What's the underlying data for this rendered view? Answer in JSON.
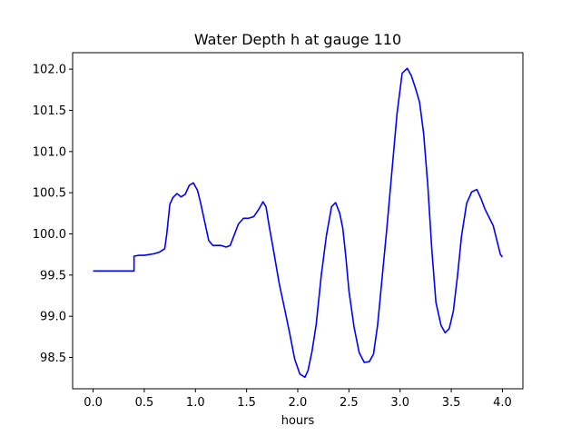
{
  "chart_data": {
    "type": "line",
    "title": "Water Depth h at gauge 110",
    "xlabel": "hours",
    "ylabel": "",
    "xlim": [
      -0.2,
      4.2
    ],
    "ylim": [
      98.12,
      102.2
    ],
    "xticks": [
      0.0,
      0.5,
      1.0,
      1.5,
      2.0,
      2.5,
      3.0,
      3.5,
      4.0
    ],
    "xtick_labels": [
      "0.0",
      "0.5",
      "1.0",
      "1.5",
      "2.0",
      "2.5",
      "3.0",
      "3.5",
      "4.0"
    ],
    "yticks": [
      98.5,
      99.0,
      99.5,
      100.0,
      100.5,
      101.0,
      101.5,
      102.0
    ],
    "ytick_labels": [
      "98.5",
      "99.0",
      "99.5",
      "100.0",
      "100.5",
      "101.0",
      "101.5",
      "102.0"
    ],
    "grid": false,
    "line_color": "#0000ff",
    "series": [
      {
        "x": [
          0.0,
          0.1,
          0.2,
          0.3,
          0.4,
          0.4,
          0.45,
          0.5,
          0.55,
          0.6,
          0.65,
          0.7,
          0.72,
          0.75,
          0.78,
          0.82,
          0.86,
          0.9,
          0.94,
          0.98,
          1.02,
          1.05,
          1.09,
          1.13,
          1.17,
          1.2,
          1.25,
          1.3,
          1.34,
          1.38,
          1.42,
          1.47,
          1.52,
          1.57,
          1.62,
          1.66,
          1.69,
          1.72,
          1.77,
          1.82,
          1.87,
          1.92,
          1.97,
          2.02,
          2.07,
          2.1,
          2.14,
          2.18,
          2.23,
          2.28,
          2.33,
          2.37,
          2.41,
          2.44,
          2.47,
          2.5,
          2.55,
          2.6,
          2.65,
          2.7,
          2.74,
          2.78,
          2.82,
          2.87,
          2.92,
          2.97,
          3.02,
          3.07,
          3.11,
          3.15,
          3.19,
          3.23,
          3.27,
          3.31,
          3.35,
          3.4,
          3.44,
          3.48,
          3.52,
          3.56,
          3.6,
          3.65,
          3.7,
          3.75,
          3.79,
          3.83,
          3.87,
          3.91,
          3.95,
          3.98,
          4.0
        ],
        "y": [
          99.55,
          99.55,
          99.55,
          99.55,
          99.55,
          99.73,
          99.74,
          99.74,
          99.75,
          99.76,
          99.78,
          99.82,
          100.0,
          100.36,
          100.44,
          100.49,
          100.45,
          100.48,
          100.59,
          100.62,
          100.53,
          100.38,
          100.15,
          99.92,
          99.86,
          99.86,
          99.86,
          99.84,
          99.86,
          99.99,
          100.12,
          100.19,
          100.19,
          100.21,
          100.3,
          100.39,
          100.33,
          100.1,
          99.75,
          99.39,
          99.1,
          98.8,
          98.48,
          98.3,
          98.26,
          98.34,
          98.58,
          98.9,
          99.5,
          99.98,
          100.33,
          100.38,
          100.25,
          100.07,
          99.72,
          99.31,
          98.87,
          98.56,
          98.44,
          98.45,
          98.54,
          98.89,
          99.41,
          100.06,
          100.76,
          101.46,
          101.95,
          102.01,
          101.92,
          101.77,
          101.6,
          101.22,
          100.6,
          99.81,
          99.17,
          98.89,
          98.8,
          98.85,
          99.06,
          99.48,
          99.97,
          100.37,
          100.51,
          100.54,
          100.43,
          100.3,
          100.2,
          100.1,
          99.9,
          99.75,
          99.72
        ]
      }
    ]
  }
}
